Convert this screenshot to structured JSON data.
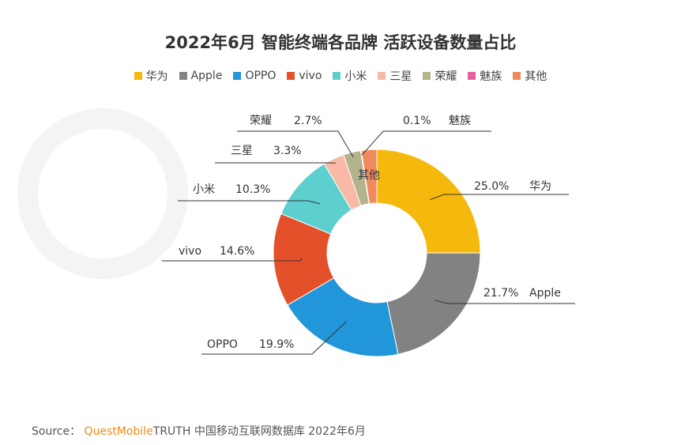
{
  "chart_data": {
    "type": "pie",
    "variant": "donut",
    "title": "2022年6月 智能终端各品牌 活跃设备数量占比",
    "slices": [
      {
        "name": "华为",
        "value": 25.0,
        "label": "25.0%",
        "color": "#f5b80c"
      },
      {
        "name": "Apple",
        "value": 21.7,
        "label": "21.7%",
        "color": "#828282"
      },
      {
        "name": "OPPO",
        "value": 19.9,
        "label": "19.9%",
        "color": "#2196d8"
      },
      {
        "name": "vivo",
        "value": 14.6,
        "label": "14.6%",
        "color": "#e4502a"
      },
      {
        "name": "小米",
        "value": 10.3,
        "label": "10.3%",
        "color": "#5ecfcf"
      },
      {
        "name": "三星",
        "value": 3.3,
        "label": "3.3%",
        "color": "#f8b9a6"
      },
      {
        "name": "荣耀",
        "value": 2.7,
        "label": "2.7%",
        "color": "#b3b38c"
      },
      {
        "name": "魅族",
        "value": 0.1,
        "label": "0.1%",
        "color": "#e85fa0"
      },
      {
        "name": "其他",
        "value": 2.4,
        "label": "",
        "color": "#f08a5e"
      }
    ],
    "legend_placement": "top-center",
    "inner_label": "其他"
  },
  "source": {
    "prefix": "Source：",
    "brand_orange": "QuestMobile",
    "brand_rest": "TRUTH",
    "suffix": "中国移动互联网数据库 2022年6月"
  }
}
